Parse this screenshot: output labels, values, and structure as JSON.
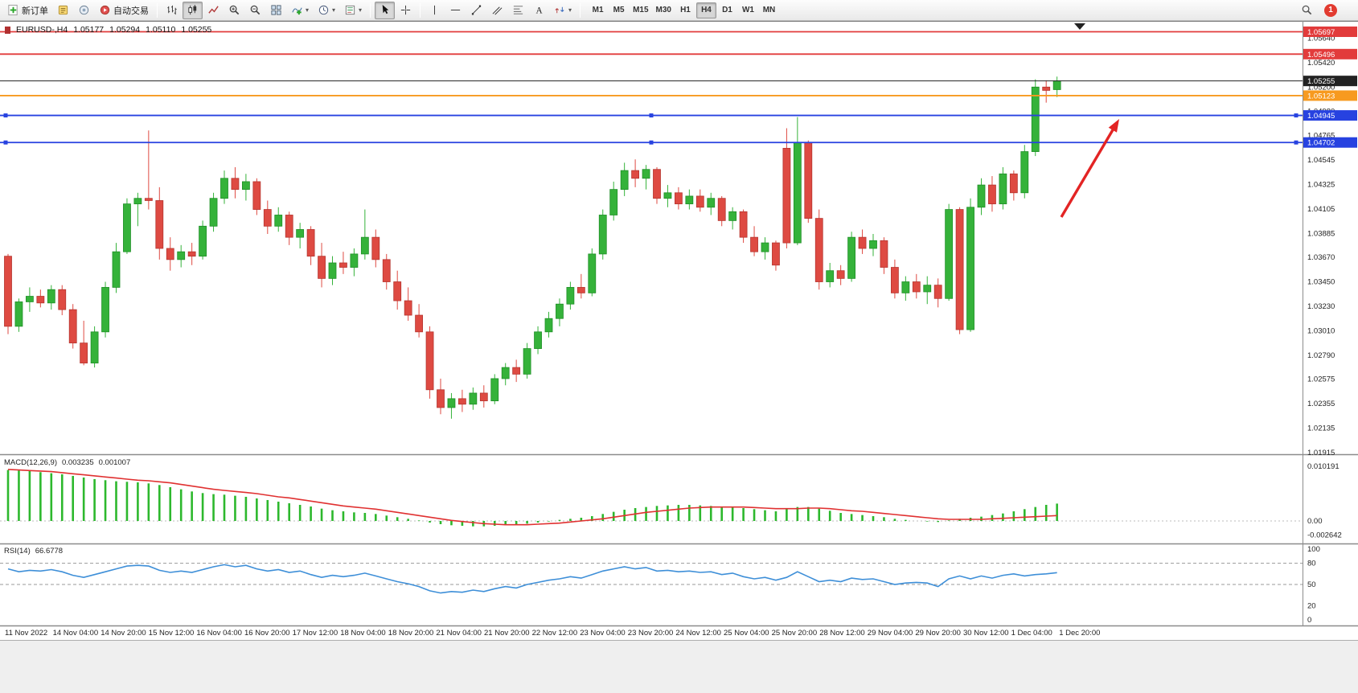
{
  "toolbar": {
    "new_order": "新订单",
    "autotrading": "自动交易",
    "timeframes": [
      "M1",
      "M5",
      "M15",
      "M30",
      "H1",
      "H4",
      "D1",
      "W1",
      "MN"
    ],
    "active_timeframe": "H4",
    "notification_count": "1",
    "icons": [
      "new-order-icon",
      "expert-advisors-icon",
      "navigator-icon",
      "autotrading-icon",
      "bar-chart-icon",
      "candlestick-icon",
      "line-chart-icon",
      "zoom-in-icon",
      "zoom-out-icon",
      "tile-windows-icon",
      "indicators-icon",
      "periods-icon",
      "templates-icon",
      "cursor-icon",
      "crosshair-icon",
      "vertical-line-icon",
      "horizontal-line-icon",
      "trendline-icon",
      "channel-icon",
      "fibonacci-icon",
      "text-icon",
      "arrows-icon",
      "search-icon"
    ]
  },
  "chart_data": {
    "type": "candlestick",
    "symbol_label": "EURUSD-,H4",
    "current_ohlc": {
      "open": "1.05177",
      "high": "1.05294",
      "low": "1.05110",
      "close": "1.05255"
    },
    "price_range": [
      1.01915,
      1.0578
    ],
    "colors": {
      "bull": "#35b23a",
      "bear": "#de4a42",
      "macd_hist": "#2db82d",
      "macd_signal": "#e03131",
      "rsi_line": "#3e8fd8"
    },
    "price_axis_ticks": [
      "1.05640",
      "1.05420",
      "1.05200",
      "1.04980",
      "1.04765",
      "1.04545",
      "1.04325",
      "1.04105",
      "1.03885",
      "1.03670",
      "1.03450",
      "1.03230",
      "1.03010",
      "1.02790",
      "1.02575",
      "1.02355",
      "1.02135",
      "1.01915"
    ],
    "horizontal_levels": [
      {
        "label": "1.05697",
        "value": 1.05697,
        "color": "#e23b3b",
        "style": "resistance-line"
      },
      {
        "label": "1.05496",
        "value": 1.05496,
        "color": "#e23b3b",
        "style": "resistance-line"
      },
      {
        "label": "1.05255",
        "value": 1.05255,
        "color": "#222222",
        "style": "current-price"
      },
      {
        "label": "1.05123",
        "value": 1.05123,
        "color": "#f79a1f",
        "style": "level-line"
      },
      {
        "label": "1.04945",
        "value": 1.04945,
        "color": "#2742e0",
        "style": "support-line",
        "handles": true
      },
      {
        "label": "1.04702",
        "value": 1.04702,
        "color": "#2742e0",
        "style": "support-line",
        "handles": true
      }
    ],
    "time_axis": [
      "11 Nov 2022",
      "14 Nov 04:00",
      "14 Nov 20:00",
      "15 Nov 12:00",
      "16 Nov 04:00",
      "16 Nov 20:00",
      "17 Nov 12:00",
      "18 Nov 04:00",
      "18 Nov 20:00",
      "21 Nov 04:00",
      "21 Nov 20:00",
      "22 Nov 12:00",
      "23 Nov 04:00",
      "23 Nov 20:00",
      "24 Nov 12:00",
      "25 Nov 04:00",
      "25 Nov 20:00",
      "28 Nov 12:00",
      "29 Nov 04:00",
      "29 Nov 20:00",
      "30 Nov 12:00",
      "1 Dec 04:00",
      "1 Dec 20:00"
    ],
    "candles": [
      [
        1.0368,
        1.037,
        1.0298,
        1.0305
      ],
      [
        1.0305,
        1.033,
        1.03,
        1.0327
      ],
      [
        1.0327,
        1.034,
        1.0318,
        1.0332
      ],
      [
        1.0332,
        1.0338,
        1.0322,
        1.0326
      ],
      [
        1.0326,
        1.0342,
        1.032,
        1.0338
      ],
      [
        1.0338,
        1.0342,
        1.0315,
        1.032
      ],
      [
        1.032,
        1.0325,
        1.0285,
        1.029
      ],
      [
        1.029,
        1.031,
        1.027,
        1.0272
      ],
      [
        1.0272,
        1.0305,
        1.0268,
        1.03
      ],
      [
        1.03,
        1.0345,
        1.0295,
        1.034
      ],
      [
        1.034,
        1.038,
        1.0335,
        1.0372
      ],
      [
        1.0372,
        1.042,
        1.037,
        1.0415
      ],
      [
        1.0415,
        1.0425,
        1.0395,
        1.042
      ],
      [
        1.042,
        1.0481,
        1.041,
        1.0418
      ],
      [
        1.0418,
        1.043,
        1.0365,
        1.0375
      ],
      [
        1.0375,
        1.0385,
        1.0355,
        1.0365
      ],
      [
        1.0365,
        1.0378,
        1.0358,
        1.0372
      ],
      [
        1.0372,
        1.038,
        1.036,
        1.0368
      ],
      [
        1.0368,
        1.04,
        1.0365,
        1.0395
      ],
      [
        1.0395,
        1.0425,
        1.039,
        1.042
      ],
      [
        1.042,
        1.0445,
        1.0415,
        1.0438
      ],
      [
        1.0438,
        1.0448,
        1.042,
        1.0428
      ],
      [
        1.0428,
        1.0442,
        1.0418,
        1.0435
      ],
      [
        1.0435,
        1.0438,
        1.0405,
        1.041
      ],
      [
        1.041,
        1.0418,
        1.0388,
        1.0395
      ],
      [
        1.0395,
        1.0412,
        1.039,
        1.0405
      ],
      [
        1.0405,
        1.0408,
        1.0378,
        1.0385
      ],
      [
        1.0385,
        1.0398,
        1.0375,
        1.0392
      ],
      [
        1.0392,
        1.0395,
        1.036,
        1.0368
      ],
      [
        1.0368,
        1.038,
        1.034,
        1.0348
      ],
      [
        1.0348,
        1.0368,
        1.0342,
        1.0362
      ],
      [
        1.0362,
        1.0372,
        1.0352,
        1.0358
      ],
      [
        1.0358,
        1.0375,
        1.035,
        1.037
      ],
      [
        1.037,
        1.041,
        1.0365,
        1.0385
      ],
      [
        1.0385,
        1.0392,
        1.0358,
        1.0365
      ],
      [
        1.0365,
        1.037,
        1.0338,
        1.0345
      ],
      [
        1.0345,
        1.0355,
        1.032,
        1.0328
      ],
      [
        1.0328,
        1.034,
        1.031,
        1.0315
      ],
      [
        1.0315,
        1.0325,
        1.0295,
        1.03
      ],
      [
        1.03,
        1.0305,
        1.024,
        1.0248
      ],
      [
        1.0248,
        1.0258,
        1.0226,
        1.0232
      ],
      [
        1.0232,
        1.0245,
        1.0222,
        1.024
      ],
      [
        1.024,
        1.0248,
        1.0228,
        1.0235
      ],
      [
        1.0235,
        1.025,
        1.023,
        1.0245
      ],
      [
        1.0245,
        1.0252,
        1.0232,
        1.0238
      ],
      [
        1.0238,
        1.0262,
        1.0235,
        1.0258
      ],
      [
        1.0258,
        1.0272,
        1.0252,
        1.0268
      ],
      [
        1.0268,
        1.0275,
        1.0255,
        1.0262
      ],
      [
        1.0262,
        1.029,
        1.0258,
        1.0285
      ],
      [
        1.0285,
        1.0305,
        1.028,
        1.03
      ],
      [
        1.03,
        1.0318,
        1.0295,
        1.0312
      ],
      [
        1.0312,
        1.033,
        1.0305,
        1.0325
      ],
      [
        1.0325,
        1.0345,
        1.032,
        1.034
      ],
      [
        1.034,
        1.0352,
        1.033,
        1.0335
      ],
      [
        1.0335,
        1.0375,
        1.0332,
        1.037
      ],
      [
        1.037,
        1.041,
        1.0365,
        1.0405
      ],
      [
        1.0405,
        1.0435,
        1.04,
        1.0428
      ],
      [
        1.0428,
        1.0452,
        1.0422,
        1.0445
      ],
      [
        1.0445,
        1.0455,
        1.043,
        1.0438
      ],
      [
        1.0438,
        1.045,
        1.0428,
        1.0446
      ],
      [
        1.0446,
        1.0448,
        1.0415,
        1.042
      ],
      [
        1.042,
        1.0432,
        1.0412,
        1.0425
      ],
      [
        1.0425,
        1.043,
        1.041,
        1.0415
      ],
      [
        1.0415,
        1.0428,
        1.041,
        1.0422
      ],
      [
        1.0422,
        1.0428,
        1.0408,
        1.0412
      ],
      [
        1.0412,
        1.0425,
        1.0405,
        1.042
      ],
      [
        1.042,
        1.0422,
        1.0395,
        1.04
      ],
      [
        1.04,
        1.0412,
        1.0392,
        1.0408
      ],
      [
        1.0408,
        1.041,
        1.038,
        1.0385
      ],
      [
        1.0385,
        1.0395,
        1.0368,
        1.0372
      ],
      [
        1.0372,
        1.0385,
        1.0365,
        1.038
      ],
      [
        1.038,
        1.0382,
        1.0355,
        1.036
      ],
      [
        1.0465,
        1.0483,
        1.0375,
        1.038
      ],
      [
        1.038,
        1.0493,
        1.0378,
        1.047
      ],
      [
        1.047,
        1.0472,
        1.0398,
        1.0402
      ],
      [
        1.0402,
        1.041,
        1.0338,
        1.0345
      ],
      [
        1.0345,
        1.0362,
        1.034,
        1.0355
      ],
      [
        1.0355,
        1.036,
        1.0342,
        1.0348
      ],
      [
        1.0348,
        1.039,
        1.0345,
        1.0385
      ],
      [
        1.0385,
        1.0392,
        1.037,
        1.0375
      ],
      [
        1.0375,
        1.0388,
        1.0368,
        1.0382
      ],
      [
        1.0382,
        1.0385,
        1.0352,
        1.0358
      ],
      [
        1.0358,
        1.0365,
        1.033,
        1.0335
      ],
      [
        1.0335,
        1.035,
        1.0328,
        1.0345
      ],
      [
        1.0345,
        1.0352,
        1.033,
        1.0336
      ],
      [
        1.0336,
        1.035,
        1.0325,
        1.0342
      ],
      [
        1.0342,
        1.0348,
        1.0322,
        1.033
      ],
      [
        1.033,
        1.0415,
        1.0328,
        1.041
      ],
      [
        1.041,
        1.0412,
        1.0298,
        1.0302
      ],
      [
        1.0302,
        1.042,
        1.03,
        1.0412
      ],
      [
        1.0412,
        1.0438,
        1.0405,
        1.0432
      ],
      [
        1.0432,
        1.044,
        1.0408,
        1.0415
      ],
      [
        1.0415,
        1.0448,
        1.041,
        1.0442
      ],
      [
        1.0442,
        1.0445,
        1.0418,
        1.0425
      ],
      [
        1.0425,
        1.0468,
        1.042,
        1.0462
      ],
      [
        1.0462,
        1.0527,
        1.0458,
        1.052
      ],
      [
        1.052,
        1.0526,
        1.0506,
        1.0517
      ],
      [
        1.05177,
        1.05294,
        1.0511,
        1.05255
      ]
    ],
    "indicators": [
      {
        "type": "macd",
        "label": "MACD(12,26,9)",
        "values": [
          "0.003235",
          "0.001007"
        ],
        "axis": [
          "0.010191",
          "0.00",
          "-0.002642"
        ],
        "histogram": [
          0.0095,
          0.0094,
          0.0093,
          0.0091,
          0.0089,
          0.0087,
          0.0084,
          0.0081,
          0.0078,
          0.0076,
          0.0074,
          0.0073,
          0.0072,
          0.007,
          0.0067,
          0.0063,
          0.0059,
          0.0055,
          0.0052,
          0.005,
          0.0049,
          0.0047,
          0.0045,
          0.0042,
          0.0039,
          0.0036,
          0.0033,
          0.003,
          0.0027,
          0.0023,
          0.002,
          0.0018,
          0.0016,
          0.0015,
          0.0013,
          0.001,
          0.0007,
          0.0004,
          0.0001,
          -0.0003,
          -0.0006,
          -0.0008,
          -0.0009,
          -0.001,
          -0.001,
          -0.0009,
          -0.0008,
          -0.0007,
          -0.0005,
          -0.0003,
          -0.0001,
          0.0002,
          0.0004,
          0.0006,
          0.0009,
          0.0013,
          0.0017,
          0.0021,
          0.0024,
          0.0026,
          0.0028,
          0.0029,
          0.003,
          0.003,
          0.0029,
          0.0028,
          0.0027,
          0.0026,
          0.0024,
          0.0022,
          0.002,
          0.0018,
          0.0022,
          0.0026,
          0.0026,
          0.0023,
          0.0019,
          0.0015,
          0.0013,
          0.0011,
          0.0009,
          0.0007,
          0.0004,
          0.0002,
          0.0,
          -0.0001,
          -0.0002,
          0.0001,
          0.0004,
          0.0006,
          0.0008,
          0.0011,
          0.0014,
          0.0018,
          0.0022,
          0.0026,
          0.003,
          0.003235
        ],
        "signal": [
          0.0096,
          0.0095,
          0.0094,
          0.0093,
          0.0092,
          0.009,
          0.0088,
          0.0086,
          0.0084,
          0.0082,
          0.008,
          0.0078,
          0.0076,
          0.0075,
          0.0073,
          0.0071,
          0.0068,
          0.0065,
          0.0062,
          0.0059,
          0.0057,
          0.0055,
          0.0053,
          0.0051,
          0.0048,
          0.0045,
          0.0043,
          0.004,
          0.0037,
          0.0034,
          0.0031,
          0.0028,
          0.0026,
          0.0024,
          0.0022,
          0.0019,
          0.0016,
          0.0013,
          0.001,
          0.0007,
          0.0004,
          0.0001,
          -0.0001,
          -0.0003,
          -0.0005,
          -0.0006,
          -0.0007,
          -0.0007,
          -0.0007,
          -0.0006,
          -0.0005,
          -0.0004,
          -0.0002,
          0.0,
          0.0002,
          0.0004,
          0.0007,
          0.001,
          0.0013,
          0.0016,
          0.0018,
          0.002,
          0.0022,
          0.0024,
          0.0025,
          0.0026,
          0.0026,
          0.0026,
          0.0026,
          0.0025,
          0.0024,
          0.0023,
          0.0023,
          0.0023,
          0.0024,
          0.0024,
          0.0023,
          0.0021,
          0.0019,
          0.0018,
          0.0016,
          0.0014,
          0.0012,
          0.001,
          0.0008,
          0.0006,
          0.0004,
          0.0003,
          0.0003,
          0.0003,
          0.0003,
          0.0004,
          0.0005,
          0.0006,
          0.0007,
          0.0008,
          0.0009,
          0.001007
        ]
      },
      {
        "type": "rsi",
        "label": "RSI(14)",
        "value": "66.6778",
        "axis": [
          "100",
          "80",
          "50",
          "20",
          "0"
        ],
        "levels": [
          80,
          50
        ],
        "values": [
          72,
          68,
          70,
          69,
          71,
          68,
          63,
          60,
          64,
          68,
          72,
          76,
          77,
          76,
          70,
          67,
          69,
          67,
          71,
          75,
          78,
          75,
          77,
          72,
          69,
          71,
          67,
          69,
          64,
          60,
          63,
          61,
          63,
          66,
          62,
          58,
          54,
          51,
          47,
          41,
          38,
          40,
          39,
          42,
          40,
          44,
          47,
          45,
          50,
          53,
          56,
          58,
          61,
          59,
          64,
          69,
          72,
          75,
          72,
          74,
          69,
          70,
          68,
          69,
          67,
          68,
          64,
          66,
          61,
          58,
          60,
          56,
          60,
          68,
          61,
          54,
          56,
          54,
          59,
          57,
          58,
          54,
          50,
          52,
          53,
          52,
          47,
          58,
          62,
          58,
          62,
          59,
          63,
          65,
          62,
          64,
          65,
          66.6778
        ]
      }
    ],
    "annotations": [
      {
        "type": "arrow",
        "color": "#e32424",
        "from": [
          1320,
          270
        ],
        "to": [
          1392,
          148
        ],
        "direction": "up-right"
      }
    ]
  }
}
